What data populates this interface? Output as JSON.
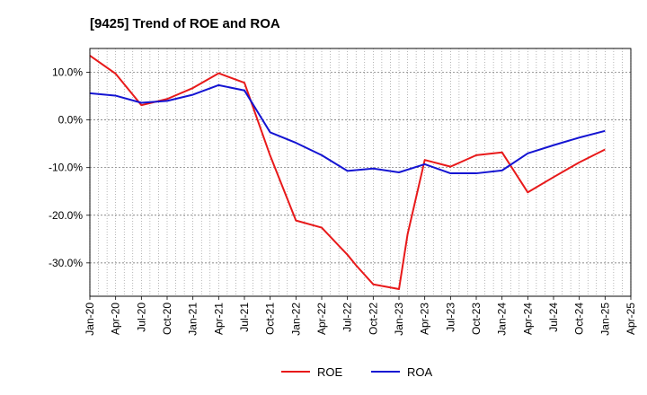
{
  "chart_data": {
    "type": "line",
    "title": "[9425]  Trend of ROE and ROA",
    "xlabel": "",
    "ylabel": "",
    "ylim": [
      -37,
      15
    ],
    "y_ticks": [
      "10.0%",
      "0.0%",
      "-10.0%",
      "-20.0%",
      "-30.0%"
    ],
    "y_tick_values": [
      10,
      0,
      -10,
      -20,
      -30
    ],
    "x_tick_labels": [
      "Jan-20",
      "Apr-20",
      "Jul-20",
      "Oct-20",
      "Jan-21",
      "Apr-21",
      "Jul-21",
      "Oct-21",
      "Jan-22",
      "Apr-22",
      "Jul-22",
      "Oct-22",
      "Jan-23",
      "Apr-23",
      "Jul-23",
      "Oct-23",
      "Jan-24",
      "Apr-24",
      "Jul-24",
      "Oct-24",
      "Jan-25",
      "Apr-25"
    ],
    "grid": true,
    "legend_position": "bottom-center",
    "series": [
      {
        "name": "ROE",
        "color": "#e8191a",
        "points": [
          [
            "Jan-20",
            13.5
          ],
          [
            "Apr-20",
            9.7
          ],
          [
            "Jul-20",
            3.1
          ],
          [
            "Oct-20",
            4.4
          ],
          [
            "Jan-21",
            6.7
          ],
          [
            "Apr-21",
            9.8
          ],
          [
            "Jul-21",
            7.8
          ],
          [
            "Oct-21",
            -7.5
          ],
          [
            "Jan-22",
            -21.1
          ],
          [
            "Apr-22",
            -22.6
          ],
          [
            "Jul-22",
            -28.3
          ],
          [
            "Aug-22",
            -30.5
          ],
          [
            "Oct-22",
            -34.5
          ],
          [
            "Jan-23",
            -35.5
          ],
          [
            "Feb-23",
            -24.0
          ],
          [
            "Apr-23",
            -8.4
          ],
          [
            "Jul-23",
            -9.8
          ],
          [
            "Oct-23",
            -7.4
          ],
          [
            "Jan-24",
            -6.8
          ],
          [
            "Apr-24",
            -15.2
          ],
          [
            "Jul-24",
            -12.0
          ],
          [
            "Oct-24",
            -8.9
          ],
          [
            "Jan-25",
            -6.2
          ]
        ]
      },
      {
        "name": "ROA",
        "color": "#1414d2",
        "points": [
          [
            "Jan-20",
            5.6
          ],
          [
            "Apr-20",
            5.1
          ],
          [
            "Jul-20",
            3.6
          ],
          [
            "Oct-20",
            4.0
          ],
          [
            "Jan-21",
            5.3
          ],
          [
            "Apr-21",
            7.3
          ],
          [
            "Jul-21",
            6.2
          ],
          [
            "Oct-21",
            -2.6
          ],
          [
            "Jan-22",
            -4.8
          ],
          [
            "Apr-22",
            -7.4
          ],
          [
            "Jul-22",
            -10.7
          ],
          [
            "Oct-22",
            -10.2
          ],
          [
            "Jan-23",
            -11.0
          ],
          [
            "Apr-23",
            -9.3
          ],
          [
            "Jul-23",
            -11.2
          ],
          [
            "Oct-23",
            -11.2
          ],
          [
            "Jan-24",
            -10.6
          ],
          [
            "Apr-24",
            -7.0
          ],
          [
            "Jul-24",
            -5.3
          ],
          [
            "Oct-24",
            -3.7
          ],
          [
            "Jan-25",
            -2.3
          ]
        ]
      }
    ]
  }
}
